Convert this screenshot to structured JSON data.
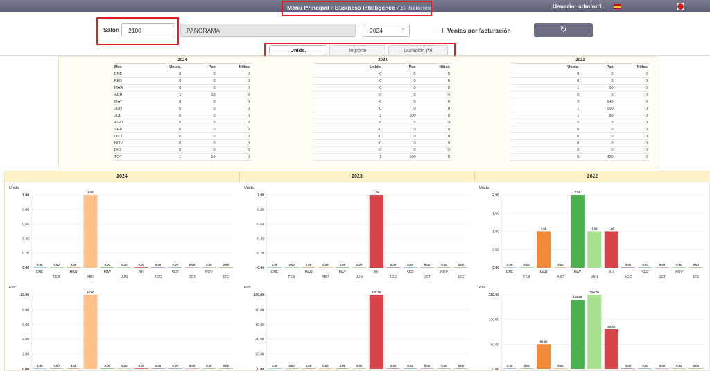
{
  "header": {
    "breadcrumb": [
      "Menú Principal",
      "Business Intelligence",
      "BI Salones"
    ],
    "user": "Usuario: adminc1"
  },
  "filters": {
    "salon_label": "Salón",
    "salon_code": "2100",
    "salon_name": "PANORAMA",
    "year": "2024",
    "fact_label": "Ventas por facturación"
  },
  "tabs": [
    "Unids.",
    "Importe",
    "Duración (h)"
  ],
  "tables": [
    {
      "year": "2024",
      "headers": [
        "Mes",
        "Unids.",
        "Pax",
        "Niños"
      ],
      "rows": [
        [
          "ENE",
          "0",
          "0",
          "0"
        ],
        [
          "FEB",
          "0",
          "0",
          "0"
        ],
        [
          "MAR",
          "0",
          "0",
          "0"
        ],
        [
          "ABR",
          "1",
          "10",
          "0"
        ],
        [
          "MAY",
          "0",
          "0",
          "0"
        ],
        [
          "JUN",
          "0",
          "0",
          "0"
        ],
        [
          "JUL",
          "0",
          "0",
          "0"
        ],
        [
          "AGO",
          "0",
          "0",
          "0"
        ],
        [
          "SEP",
          "0",
          "0",
          "0"
        ],
        [
          "OCT",
          "0",
          "0",
          "0"
        ],
        [
          "NOV",
          "0",
          "0",
          "0"
        ],
        [
          "DIC",
          "0",
          "0",
          "0"
        ],
        [
          "TOT",
          "1",
          "10",
          "0"
        ]
      ]
    },
    {
      "year": "2023",
      "headers": [
        "",
        "Unids.",
        "Pax",
        "Niños"
      ],
      "rows": [
        [
          "",
          "0",
          "0",
          "0"
        ],
        [
          "",
          "0",
          "0",
          "0"
        ],
        [
          "",
          "0",
          "0",
          "0"
        ],
        [
          "",
          "0",
          "0",
          "0"
        ],
        [
          "",
          "0",
          "0",
          "0"
        ],
        [
          "",
          "0",
          "0",
          "0"
        ],
        [
          "",
          "1",
          "100",
          "0"
        ],
        [
          "",
          "0",
          "0",
          "0"
        ],
        [
          "",
          "0",
          "0",
          "0"
        ],
        [
          "",
          "0",
          "0",
          "0"
        ],
        [
          "",
          "0",
          "0",
          "0"
        ],
        [
          "",
          "0",
          "0",
          "0"
        ],
        [
          "",
          "1",
          "100",
          "0"
        ]
      ]
    },
    {
      "year": "2022",
      "headers": [
        "",
        "Unids.",
        "Pax",
        "Niños"
      ],
      "rows": [
        [
          "",
          "0",
          "0",
          "0"
        ],
        [
          "",
          "0",
          "0",
          "0"
        ],
        [
          "",
          "1",
          "50",
          "0"
        ],
        [
          "",
          "0",
          "0",
          "0"
        ],
        [
          "",
          "2",
          "140",
          "0"
        ],
        [
          "",
          "1",
          "150",
          "0"
        ],
        [
          "",
          "1",
          "80",
          "0"
        ],
        [
          "",
          "0",
          "0",
          "0"
        ],
        [
          "",
          "0",
          "0",
          "0"
        ],
        [
          "",
          "0",
          "0",
          "0"
        ],
        [
          "",
          "0",
          "0",
          "0"
        ],
        [
          "",
          "0",
          "0",
          "0"
        ],
        [
          "",
          "5",
          "420",
          "0"
        ]
      ]
    }
  ],
  "chart_data": [
    {
      "type": "bar",
      "title": "2024",
      "ylabel": "Unids.",
      "categories": [
        "ENE",
        "FEB",
        "MAR",
        "ABR",
        "MAY",
        "JUN",
        "JUL",
        "AGO",
        "SEP",
        "OCT",
        "NOV",
        "DIC"
      ],
      "values": [
        0,
        0,
        0,
        1,
        0,
        0,
        0,
        0,
        0,
        0,
        0,
        0
      ],
      "ylim": [
        0,
        1
      ],
      "yticks": [
        "0.00",
        "0.20",
        "0.40",
        "0.60",
        "0.80",
        "1.00"
      ],
      "colors": [
        "#9bd3f0",
        "#a8d8a0",
        "#f4b183",
        "#ffc08a",
        "#8fd081",
        "#b0e0b0",
        "#e07070",
        "#c0a0d0",
        "#a0c0e0",
        "#e0b0d0",
        "#b0d0a0",
        "#d0c090"
      ]
    },
    {
      "type": "bar",
      "title": "2023",
      "ylabel": "Unids.",
      "categories": [
        "ENE",
        "FEB",
        "MAR",
        "ABR",
        "MAY",
        "JUN",
        "JUL",
        "AGO",
        "SEP",
        "OCT",
        "NOV",
        "DIC"
      ],
      "values": [
        0,
        0,
        0,
        0,
        0,
        0,
        1,
        0,
        0,
        0,
        0,
        0
      ],
      "ylim": [
        0,
        1
      ],
      "yticks": [
        "0.00",
        "0.20",
        "0.40",
        "0.60",
        "0.80",
        "1.00"
      ],
      "colors": [
        "#9bd3f0",
        "#a8d8a0",
        "#f4b183",
        "#ffc08a",
        "#8fd081",
        "#b0e0b0",
        "#d9434a",
        "#c0a0d0",
        "#a0c0e0",
        "#e0b0d0",
        "#b0d0a0",
        "#d0c090"
      ]
    },
    {
      "type": "bar",
      "title": "2022",
      "ylabel": "Unids.",
      "categories": [
        "ENE",
        "FEB",
        "MAR",
        "ABR",
        "MAY",
        "JUN",
        "JUL",
        "AGO",
        "SEP",
        "OCT",
        "NOV",
        "DIC"
      ],
      "values": [
        0,
        0,
        1,
        0,
        2,
        1,
        1,
        0,
        0,
        0,
        0,
        0
      ],
      "ylim": [
        0,
        2
      ],
      "yticks": [
        "0.00",
        "0.50",
        "1.00",
        "1.50",
        "2.00"
      ],
      "colors": [
        "#9bd3f0",
        "#a8d8a0",
        "#f28a3c",
        "#ffc08a",
        "#4caf50",
        "#a6e08e",
        "#d9434a",
        "#c0a0d0",
        "#a0c0e0",
        "#e0b0d0",
        "#b0d0a0",
        "#d0c090"
      ]
    },
    {
      "type": "bar",
      "title": "2024",
      "ylabel": "Pax",
      "categories": [
        "ENE",
        "FEB",
        "MAR",
        "ABR",
        "MAY",
        "JUN",
        "JUL",
        "AGO",
        "SEP",
        "OCT",
        "NOV",
        "DIC"
      ],
      "values": [
        0,
        0,
        0,
        10,
        0,
        0,
        0,
        0,
        0,
        0,
        0,
        0
      ],
      "ylim": [
        0,
        10
      ],
      "yticks": [
        "0.00",
        "2.00",
        "4.00",
        "6.00",
        "8.00",
        "10.00"
      ],
      "colors": [
        "#9bd3f0",
        "#a8d8a0",
        "#f4b183",
        "#ffc08a",
        "#8fd081",
        "#b0e0b0",
        "#e07070",
        "#c0a0d0",
        "#a0c0e0",
        "#e0b0d0",
        "#b0d0a0",
        "#d0c090"
      ]
    },
    {
      "type": "bar",
      "title": "2023",
      "ylabel": "Pax",
      "categories": [
        "ENE",
        "FEB",
        "MAR",
        "ABR",
        "MAY",
        "JUN",
        "JUL",
        "AGO",
        "SEP",
        "OCT",
        "NOV",
        "DIC"
      ],
      "values": [
        0,
        0,
        0,
        0,
        0,
        0,
        100,
        0,
        0,
        0,
        0,
        0
      ],
      "ylim": [
        0,
        100
      ],
      "yticks": [
        "0.00",
        "20.00",
        "40.00",
        "60.00",
        "80.00",
        "100.00"
      ],
      "colors": [
        "#9bd3f0",
        "#a8d8a0",
        "#f4b183",
        "#ffc08a",
        "#8fd081",
        "#b0e0b0",
        "#d9434a",
        "#c0a0d0",
        "#a0c0e0",
        "#e0b0d0",
        "#b0d0a0",
        "#d0c090"
      ]
    },
    {
      "type": "bar",
      "title": "2022",
      "ylabel": "Pax",
      "categories": [
        "ENE",
        "FEB",
        "MAR",
        "ABR",
        "MAY",
        "JUN",
        "JUL",
        "AGO",
        "SEP",
        "OCT",
        "NOV",
        "DIC"
      ],
      "values": [
        0,
        0,
        50,
        0,
        140,
        150,
        80,
        0,
        0,
        0,
        0,
        0
      ],
      "ylim": [
        0,
        150
      ],
      "yticks": [
        "0.00",
        "50.00",
        "100.00",
        "150.00"
      ],
      "colors": [
        "#9bd3f0",
        "#a8d8a0",
        "#f28a3c",
        "#ffc08a",
        "#4caf50",
        "#a6e08e",
        "#d9434a",
        "#c0a0d0",
        "#a0c0e0",
        "#e0b0d0",
        "#b0d0a0",
        "#d0c090"
      ]
    }
  ]
}
